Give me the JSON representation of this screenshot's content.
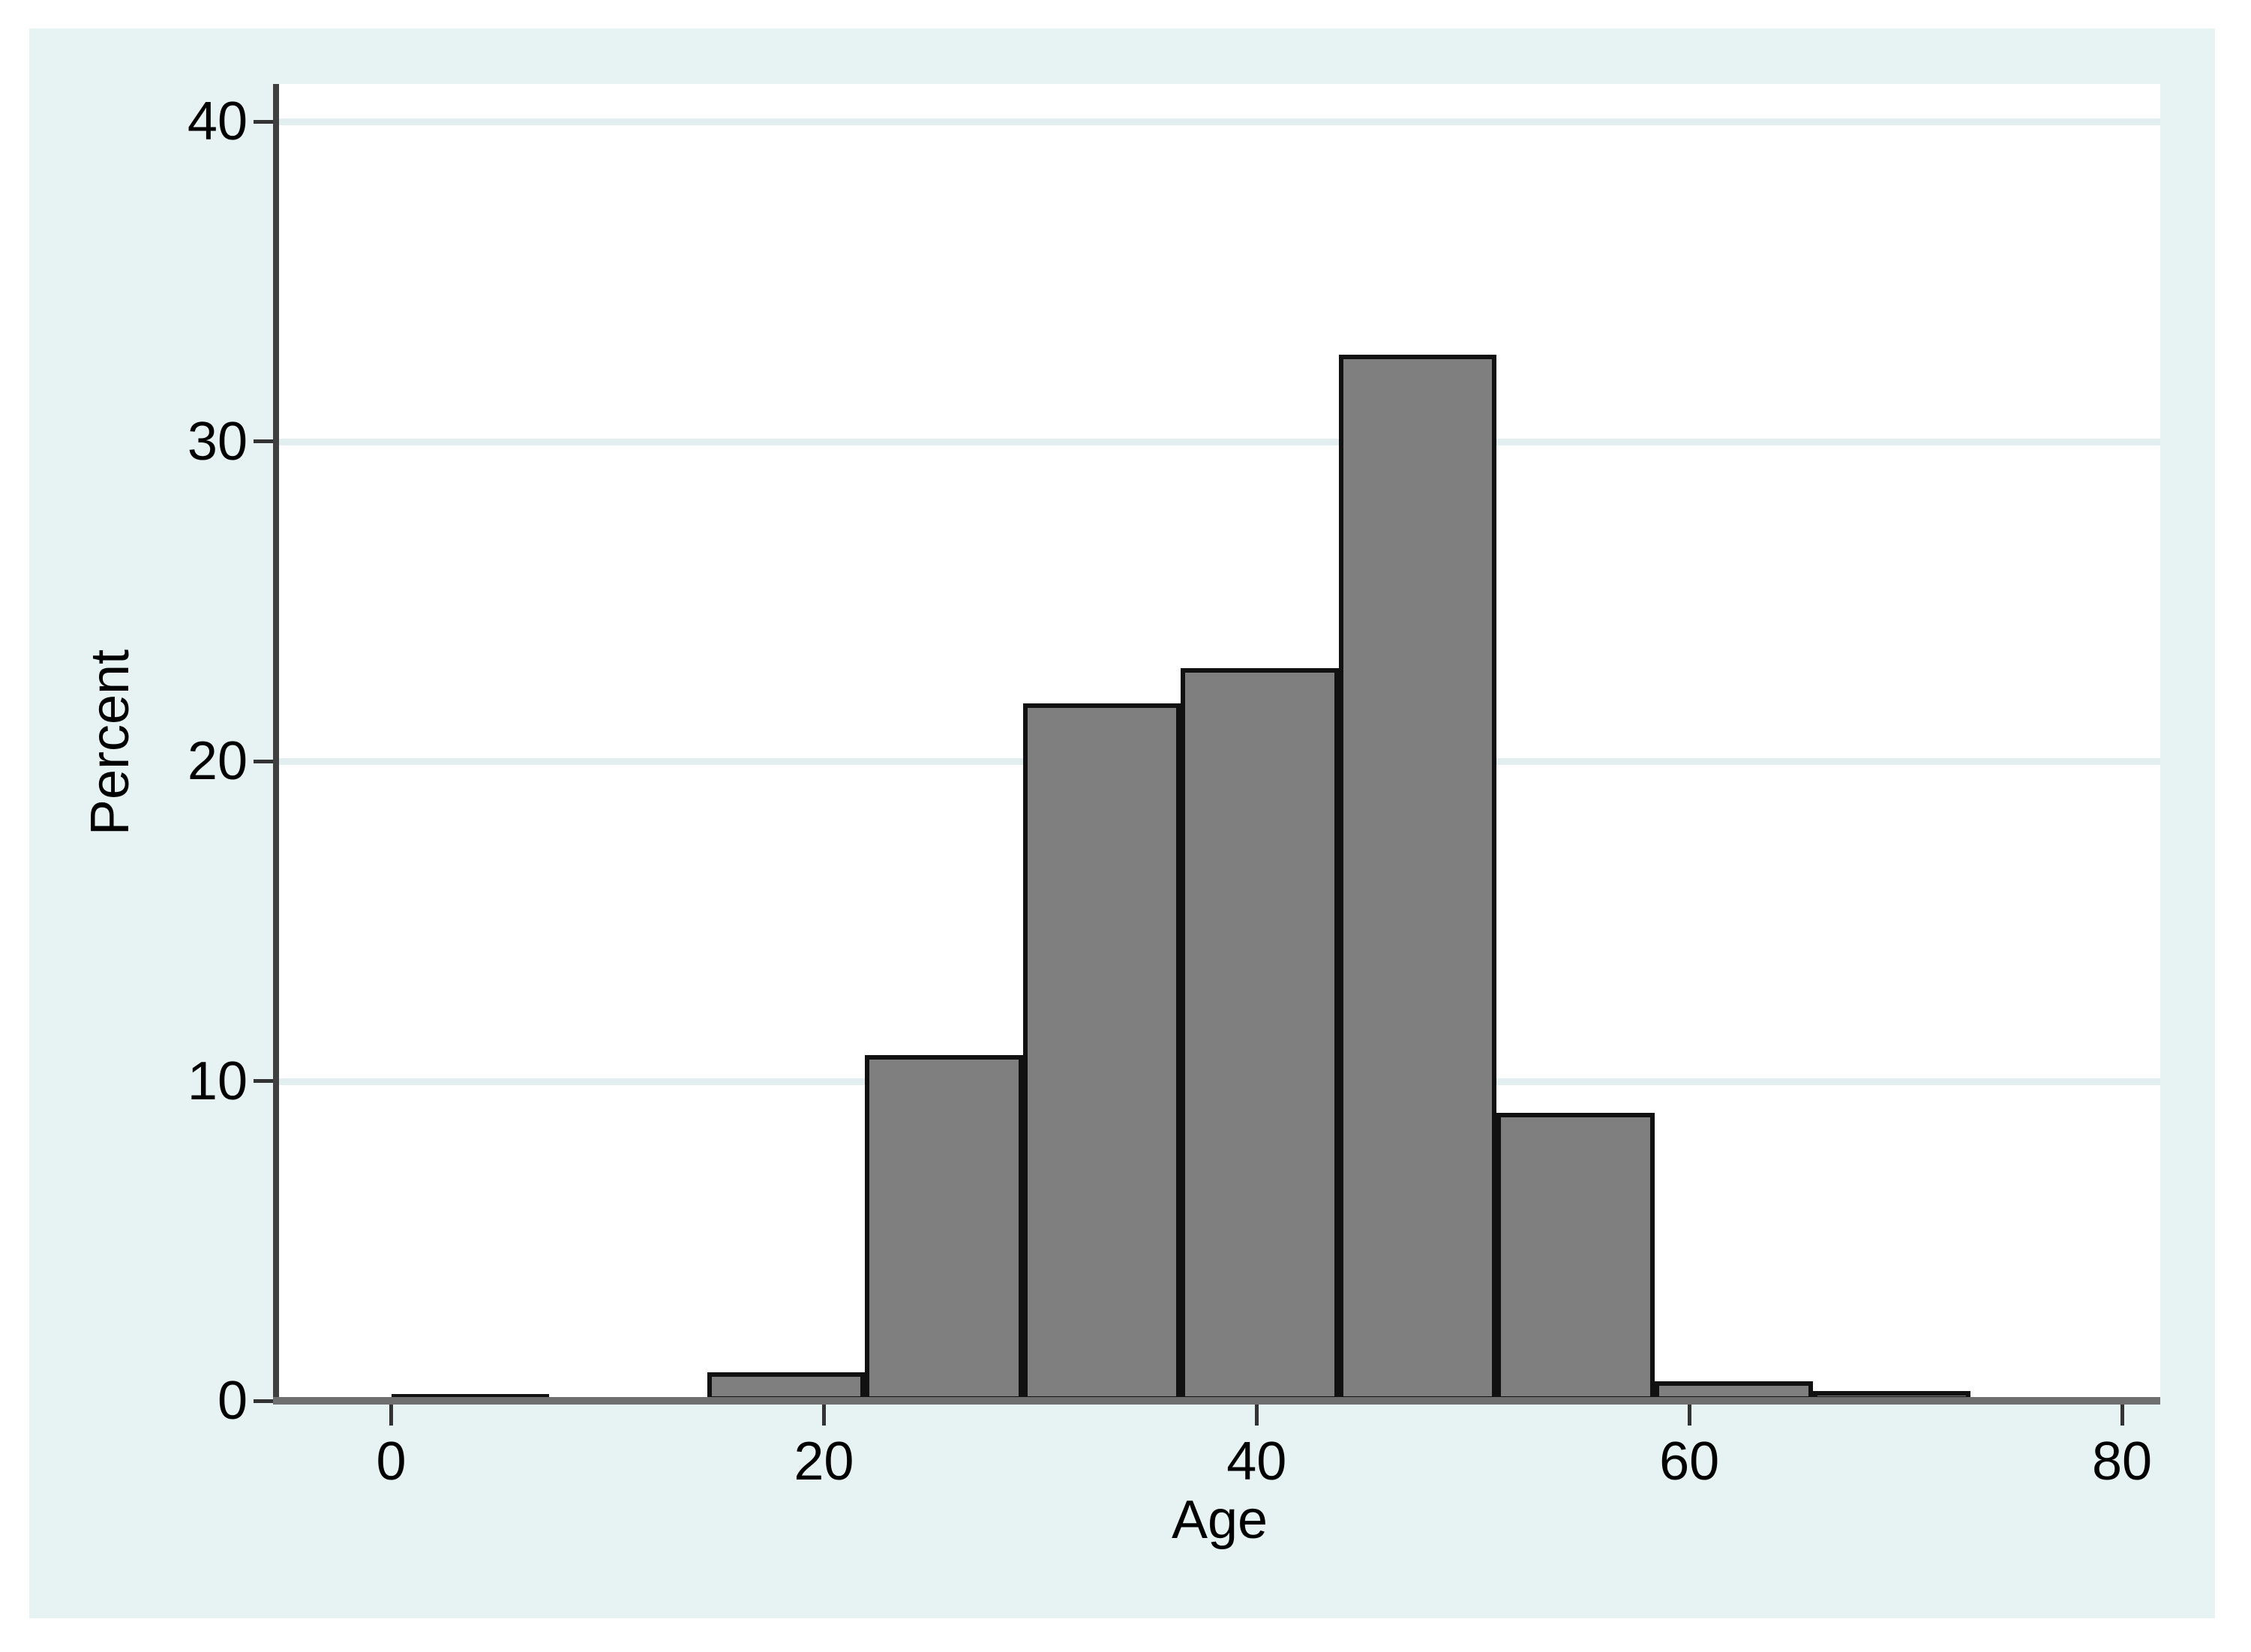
{
  "chart_data": {
    "type": "bar",
    "subtype": "histogram",
    "title": "",
    "xlabel": "Age",
    "ylabel": "Percent",
    "xlim": [
      0,
      80
    ],
    "ylim": [
      0,
      40
    ],
    "x_ticks": [
      0,
      20,
      40,
      60,
      80
    ],
    "y_ticks": [
      0,
      10,
      20,
      30,
      40
    ],
    "grid": "horizontal",
    "bin_start": 0,
    "bin_width": 7.3,
    "bins": [
      {
        "start": 0.0,
        "end": 7.3,
        "percent": 0.2
      },
      {
        "start": 7.3,
        "end": 14.6,
        "percent": 0.0
      },
      {
        "start": 14.6,
        "end": 21.9,
        "percent": 0.9
      },
      {
        "start": 21.9,
        "end": 29.2,
        "percent": 10.8
      },
      {
        "start": 29.2,
        "end": 36.5,
        "percent": 21.8
      },
      {
        "start": 36.5,
        "end": 43.8,
        "percent": 22.9
      },
      {
        "start": 43.8,
        "end": 51.1,
        "percent": 32.7
      },
      {
        "start": 51.1,
        "end": 58.4,
        "percent": 9.0
      },
      {
        "start": 58.4,
        "end": 65.7,
        "percent": 0.6
      },
      {
        "start": 65.7,
        "end": 73.0,
        "percent": 0.3
      }
    ]
  },
  "colors": {
    "page_bg": "#FFFFFF",
    "canvas_bg": "#E7F2F2",
    "plot_bg": "#FFFFFF",
    "gridline": "#E2EEEF",
    "bar_fill": "#7F7F7F",
    "bar_border": "#111111",
    "y_axis_line": "#3F3F3F",
    "x_axis_line": "#6F6F6F",
    "tick_mark": "#333333",
    "label_text": "#000000"
  }
}
